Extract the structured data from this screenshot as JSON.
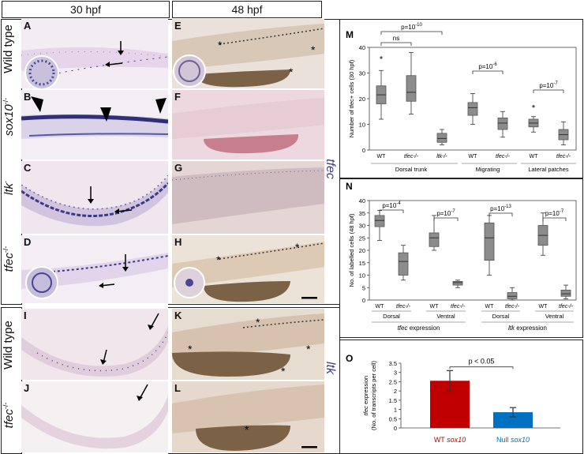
{
  "headers": {
    "left": "30 hpf",
    "right": "48 hpf"
  },
  "row_labels": {
    "wild_type_top": "Wild type",
    "sox10": "sox10",
    "sox10_sup": "-/-",
    "ltk": "ltk",
    "ltk_sup": "-",
    "tfec_top": "tfec",
    "tfec_top_sup": "-/-",
    "wild_type_bottom": "Wild type",
    "tfec_bottom": "tfec",
    "tfec_bottom_sup": "-/-"
  },
  "panel_letters": {
    "A": "A",
    "B": "B",
    "C": "C",
    "D": "D",
    "E": "E",
    "F": "F",
    "G": "G",
    "H": "H",
    "I": "I",
    "J": "J",
    "K": "K",
    "L": "L",
    "M": "M",
    "N": "N",
    "O": "O"
  },
  "gene_labels": {
    "tfec": "tfec",
    "ltk": "ltk"
  },
  "marks": {
    "asterisk": "*"
  },
  "colors": {
    "stain": "#3b3a86",
    "embryo_light": "#e9d8ea",
    "embryo_bg": "#f6eef4",
    "yolk_brown": "#7b6246",
    "yolk_pink": "#c77f8e",
    "embryo_tan": "#d8c4b0",
    "bar_red": "#c00000",
    "bar_blue": "#0070c0",
    "box_gray": "#8a8a8a"
  },
  "chart_data": [
    {
      "panel": "M",
      "type": "box",
      "ylabel": "Number of tfec+ cells (30 hpf)",
      "ylim": [
        0,
        40
      ],
      "yticks": [
        "0",
        "10",
        "20",
        "30",
        "40"
      ],
      "categories": [
        "WT",
        "tfec-/-",
        "ltk-/-",
        "WT",
        "tfec-/-",
        "WT",
        "tfec-/-"
      ],
      "groups": [
        "Dorsal trunk",
        "Migrating",
        "Lateral patches"
      ],
      "boxes": [
        {
          "label": "WT",
          "min": 12,
          "q1": 18,
          "median": 21.5,
          "q3": 25,
          "max": 31,
          "outlier": 36
        },
        {
          "label": "tfec-/-",
          "min": 14,
          "q1": 19,
          "median": 22.5,
          "q3": 29,
          "max": 38
        },
        {
          "label": "ltk-/-",
          "min": 2,
          "q1": 3,
          "median": 4.5,
          "q3": 6.5,
          "max": 8
        },
        {
          "label": "WT",
          "min": 10,
          "q1": 13.5,
          "median": 16.5,
          "q3": 18.5,
          "max": 22
        },
        {
          "label": "tfec-/-",
          "min": 5,
          "q1": 8,
          "median": 10.5,
          "q3": 12.5,
          "max": 15
        },
        {
          "label": "WT",
          "min": 7,
          "q1": 9,
          "median": 10.5,
          "q3": 12,
          "max": 13,
          "outlier": 17
        },
        {
          "label": "tfec-/-",
          "min": 2,
          "q1": 4,
          "median": 6,
          "q3": 8,
          "max": 11
        }
      ],
      "annotations": [
        {
          "text": "ns"
        },
        {
          "text": "p=10",
          "exp": "-10"
        },
        {
          "text": "p=10",
          "exp": "-6"
        },
        {
          "text": "p=10",
          "exp": "-7"
        }
      ]
    },
    {
      "panel": "N",
      "type": "box",
      "ylabel": "No. of labelled cells (48 hpf)",
      "ylim": [
        0,
        40
      ],
      "yticks": [
        "0",
        "5",
        "10",
        "15",
        "20",
        "25",
        "30",
        "35",
        "40"
      ],
      "categories": [
        "WT",
        "tfec-/-",
        "WT",
        "tfec-/-",
        "WT",
        "tfec-/-",
        "WT",
        "tfec-/-"
      ],
      "subgroups": [
        "Dorsal",
        "Ventral",
        "Dorsal",
        "Ventral"
      ],
      "groups": [
        {
          "gene": "tfec",
          "suffix": " expression"
        },
        {
          "gene": "ltk",
          "suffix": " expression"
        }
      ],
      "boxes": [
        {
          "label": "WT",
          "min": 24,
          "q1": 29.5,
          "median": 32,
          "q3": 34,
          "max": 36
        },
        {
          "label": "tfec-/-",
          "min": 8,
          "q1": 10,
          "median": 15.5,
          "q3": 19,
          "max": 22
        },
        {
          "label": "WT",
          "min": 20,
          "q1": 21.5,
          "median": 25,
          "q3": 27,
          "max": 34
        },
        {
          "label": "tfec-/-",
          "min": 5,
          "q1": 6,
          "median": 7,
          "q3": 7.5,
          "max": 8
        },
        {
          "label": "WT",
          "min": 10,
          "q1": 16,
          "median": 25,
          "q3": 31,
          "max": 34
        },
        {
          "label": "tfec-/-",
          "min": 0,
          "q1": 0.5,
          "median": 1.5,
          "q3": 3,
          "max": 5
        },
        {
          "label": "WT",
          "min": 18,
          "q1": 22,
          "median": 26,
          "q3": 30,
          "max": 35
        },
        {
          "label": "tfec-/-",
          "min": 0.5,
          "q1": 1.5,
          "median": 2.5,
          "q3": 4,
          "max": 6
        }
      ],
      "annotations": [
        {
          "text": "p=10",
          "exp": "-4"
        },
        {
          "text": "p=10",
          "exp": "-7"
        },
        {
          "text": "p=10",
          "exp": "-13"
        },
        {
          "text": "p=10",
          "exp": "-7"
        }
      ]
    },
    {
      "panel": "O",
      "type": "bar",
      "ylabel_line1": "tfec expression",
      "ylabel_line2": "(No. of transcripts per cell)",
      "ylim": [
        0,
        3.5
      ],
      "yticks": [
        "0",
        "0.5",
        "1",
        "1.5",
        "2",
        "2.5",
        "3",
        "3.5"
      ],
      "categories": [
        {
          "prefix": "WT ",
          "gene": "sox10"
        },
        {
          "prefix": "Null ",
          "gene": "sox10"
        }
      ],
      "values": [
        2.55,
        0.85
      ],
      "errors": [
        0.55,
        0.25
      ],
      "annotation": "p < 0.05"
    }
  ]
}
